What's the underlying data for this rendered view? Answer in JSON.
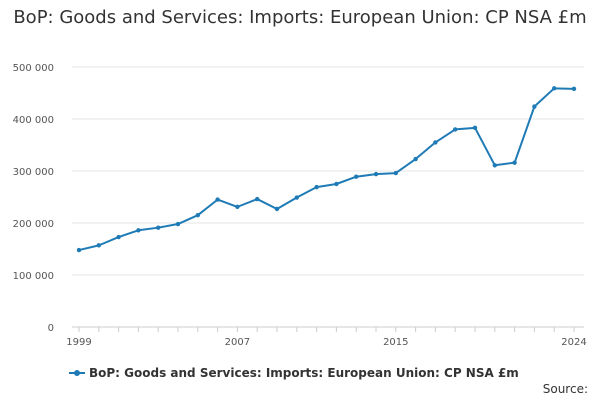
{
  "chart_data": {
    "type": "line",
    "title": "BoP: Goods and Services: Imports: European Union: CP NSA £m",
    "xlabel": "",
    "ylabel": "",
    "x": [
      1999,
      2000,
      2001,
      2002,
      2003,
      2004,
      2005,
      2006,
      2007,
      2008,
      2009,
      2010,
      2011,
      2012,
      2013,
      2014,
      2015,
      2016,
      2017,
      2018,
      2019,
      2020,
      2021,
      2022,
      2023,
      2024
    ],
    "series": [
      {
        "name": "BoP: Goods and Services: Imports: European Union: CP NSA £m",
        "values": [
          148000,
          157000,
          173000,
          186000,
          191000,
          198000,
          215000,
          245000,
          231000,
          246000,
          227000,
          249000,
          269000,
          275000,
          289000,
          294000,
          296000,
          323000,
          355000,
          380000,
          383000,
          311000,
          316000,
          424000,
          459000,
          458000
        ]
      }
    ],
    "xlim": [
      1999,
      2024
    ],
    "ylim": [
      0,
      500000
    ],
    "x_ticks": [
      1999,
      2007,
      2015,
      2024
    ],
    "y_ticks": [
      0,
      100000,
      200000,
      300000,
      400000,
      500000
    ],
    "y_tick_labels": [
      "0",
      "100 000",
      "200 000",
      "300 000",
      "400 000",
      "500 000"
    ],
    "grid": true,
    "legend_position": "bottom-left"
  },
  "legend": {
    "label": "BoP: Goods and Services: Imports: European Union: CP NSA £m"
  },
  "source_label": "Source:",
  "colors": {
    "series": "#1f7bb6",
    "grid": "#e6e6e6",
    "axis": "#cccccc",
    "text": "#333333"
  }
}
